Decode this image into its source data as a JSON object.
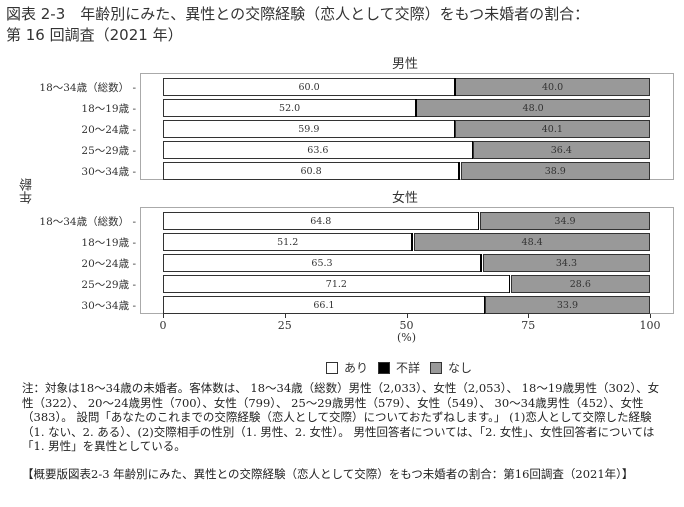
{
  "title_line1": "図表 2-3　年齢別にみた、異性との交際経験（恋人として交際）をもつ未婚者の割合：",
  "title_line2": "第 16 回調査（2021 年）",
  "ylabel": "年齢",
  "xlabel": "(%)",
  "legend": [
    {
      "label": "あり",
      "color": "#ffffff"
    },
    {
      "label": "不詳",
      "color": "#000000"
    },
    {
      "label": "なし",
      "color": "#999999"
    }
  ],
  "x_ticks": [
    "0",
    "25",
    "50",
    "75",
    "100"
  ],
  "note": "注：対象は18～34歳の未婚者。客体数は、 18～34歳（総数）男性（2,033）、女性（2,053）、 18～19歳男性（302）、女性（322）、 20～24歳男性（700）、女性（799）、 25～29歳男性（579）、女性（549）、 30～34歳男性（452）、女性（383）。 設問「あなたのこれまでの交際経験（恋人として交際）についておたずねします。」 (1)恋人として交際した経験（1. ない、2. ある）、(2)交際相手の性別（1. 男性、2. 女性）。 男性回答者については、「2. 女性」、女性回答者については「1. 男性」を異性としている。",
  "caption": "【概要版図表2-3 年齢別にみた、異性との交際経験（恋人として交際）をもつ未婚者の割合：第16回調査（2021年）】",
  "chart_data": {
    "type": "bar",
    "orientation": "horizontal",
    "stacked": true,
    "title": "年齢別にみた、異性との交際経験（恋人として交際）をもつ未婚者の割合：第16回調査（2021年）",
    "xlabel": "(%)",
    "ylabel": "年齢",
    "xlim": [
      0,
      100
    ],
    "x_ticks": [
      0,
      25,
      50,
      75,
      100
    ],
    "legend_position": "bottom",
    "grid": false,
    "categories": [
      "18～34歳（総数）",
      "18～19歳",
      "20～24歳",
      "25～29歳",
      "30～34歳"
    ],
    "panels": [
      {
        "name": "男性",
        "series": [
          {
            "name": "あり",
            "values": [
              60.0,
              52.0,
              59.9,
              63.6,
              60.8
            ]
          },
          {
            "name": "不詳",
            "values": [
              0.0,
              0.0,
              0.0,
              0.0,
              0.3
            ]
          },
          {
            "name": "なし",
            "values": [
              40.0,
              48.0,
              40.1,
              36.4,
              38.9
            ]
          }
        ],
        "labels_yes": [
          "60.0",
          "52.0",
          "59.9",
          "63.6",
          "60.8"
        ],
        "labels_no": [
          "40.0",
          "48.0",
          "40.1",
          "36.4",
          "38.9"
        ]
      },
      {
        "name": "女性",
        "series": [
          {
            "name": "あり",
            "values": [
              64.8,
              51.2,
              65.3,
              71.2,
              66.1
            ]
          },
          {
            "name": "不詳",
            "values": [
              0.3,
              0.4,
              0.4,
              0.2,
              0.0
            ]
          },
          {
            "name": "なし",
            "values": [
              34.9,
              48.4,
              34.3,
              28.6,
              33.9
            ]
          }
        ],
        "labels_yes": [
          "64.8",
          "51.2",
          "65.3",
          "71.2",
          "66.1"
        ],
        "labels_no": [
          "34.9",
          "48.4",
          "34.3",
          "28.6",
          "33.9"
        ]
      }
    ]
  }
}
